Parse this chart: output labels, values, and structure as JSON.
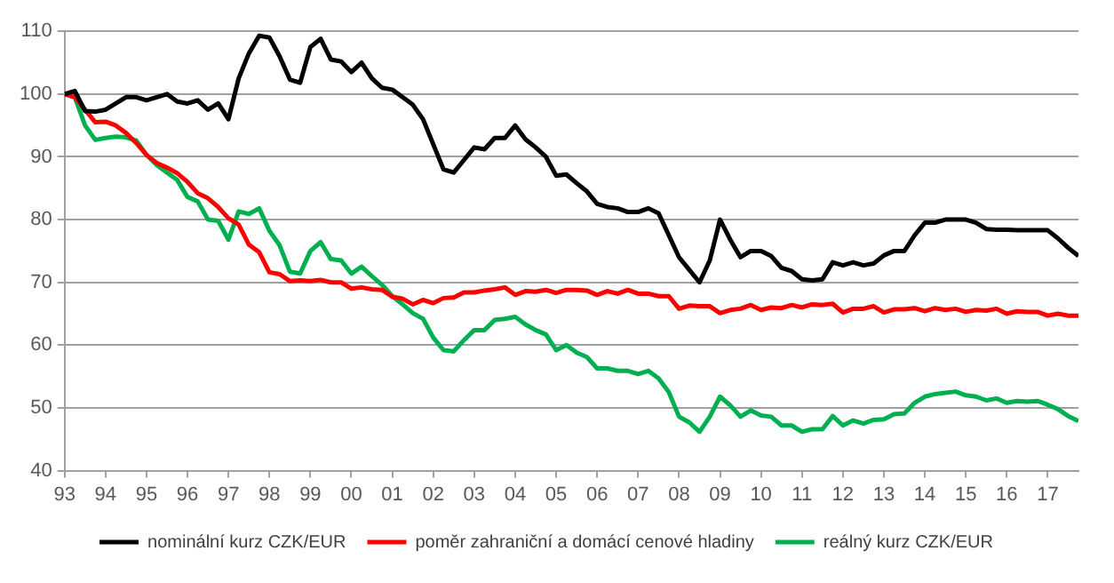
{
  "chart_data": {
    "type": "line",
    "x": [
      "1993-01",
      "1993-04",
      "1993-07",
      "1993-10",
      "1994-01",
      "1994-04",
      "1994-07",
      "1994-10",
      "1995-01",
      "1995-04",
      "1995-07",
      "1995-10",
      "1996-01",
      "1996-04",
      "1996-07",
      "1996-10",
      "1997-01",
      "1997-04",
      "1997-07",
      "1997-10",
      "1998-01",
      "1998-04",
      "1998-07",
      "1998-10",
      "1999-01",
      "1999-04",
      "1999-07",
      "1999-10",
      "2000-01",
      "2000-04",
      "2000-07",
      "2000-10",
      "2001-01",
      "2001-04",
      "2001-07",
      "2001-10",
      "2002-01",
      "2002-04",
      "2002-07",
      "2002-10",
      "2003-01",
      "2003-04",
      "2003-07",
      "2003-10",
      "2004-01",
      "2004-04",
      "2004-07",
      "2004-10",
      "2005-01",
      "2005-04",
      "2005-07",
      "2005-10",
      "2006-01",
      "2006-04",
      "2006-07",
      "2006-10",
      "2007-01",
      "2007-04",
      "2007-07",
      "2007-10",
      "2008-01",
      "2008-04",
      "2008-07",
      "2008-10",
      "2009-01",
      "2009-04",
      "2009-07",
      "2009-10",
      "2010-01",
      "2010-04",
      "2010-07",
      "2010-10",
      "2011-01",
      "2011-04",
      "2011-07",
      "2011-10",
      "2012-01",
      "2012-04",
      "2012-07",
      "2012-10",
      "2013-01",
      "2013-04",
      "2013-07",
      "2013-10",
      "2014-01",
      "2014-04",
      "2014-07",
      "2014-10",
      "2015-01",
      "2015-04",
      "2015-07",
      "2015-10",
      "2016-01",
      "2016-04",
      "2016-07",
      "2016-10",
      "2017-01",
      "2017-04",
      "2017-07",
      "2017-10"
    ],
    "series": [
      {
        "name": "nominální kurz CZK/EUR",
        "color": "#000000",
        "values": [
          100,
          100.5,
          97.3,
          97.2,
          97.5,
          98.5,
          99.5,
          99.5,
          99,
          99.5,
          100,
          98.8,
          98.5,
          99,
          97.5,
          98.5,
          96,
          102.5,
          106.5,
          109.3,
          109,
          106,
          102.3,
          101.8,
          107.5,
          108.8,
          105.5,
          105.2,
          103.5,
          105,
          102.5,
          101,
          100.7,
          99.5,
          98.3,
          96,
          92,
          88,
          87.5,
          89.5,
          91.5,
          91.2,
          93,
          93,
          95,
          92.8,
          91.5,
          90,
          87,
          87.2,
          85.8,
          84.5,
          82.5,
          82,
          81.8,
          81.2,
          81.2,
          81.8,
          81,
          77.5,
          74,
          72,
          70,
          73.5,
          80,
          76.8,
          74,
          75,
          75,
          74.2,
          72.3,
          71.8,
          70.5,
          70.3,
          70.5,
          73.2,
          72.7,
          73.2,
          72.7,
          73,
          74.3,
          75,
          75,
          77.5,
          79.5,
          79.5,
          80,
          80,
          80,
          79.5,
          78.5,
          78.4,
          78.4,
          78.3,
          78.3,
          78.3,
          78.3,
          77,
          75.5,
          74.2
        ]
      },
      {
        "name": "poměr zahraniční a domácí cenové hladiny",
        "color": "#ff0000",
        "values": [
          100,
          99.5,
          97.5,
          95.5,
          95.6,
          95,
          93.8,
          92.2,
          90.3,
          89,
          88.3,
          87.4,
          86,
          84.2,
          83.4,
          82,
          80.2,
          79.2,
          76,
          74.8,
          71.6,
          71.3,
          70.2,
          70.3,
          70.2,
          70.4,
          70,
          70,
          69,
          69.2,
          68.9,
          68.8,
          67.7,
          67.4,
          66.5,
          67.2,
          66.7,
          67.5,
          67.6,
          68.4,
          68.4,
          68.7,
          68.9,
          69.2,
          68,
          68.6,
          68.5,
          68.8,
          68.3,
          68.8,
          68.8,
          68.7,
          68,
          68.6,
          68.2,
          68.8,
          68.2,
          68.2,
          67.8,
          67.8,
          65.8,
          66.3,
          66.2,
          66.2,
          65.1,
          65.6,
          65.8,
          66.4,
          65.6,
          66,
          65.9,
          66.4,
          66,
          66.5,
          66.4,
          66.6,
          65.2,
          65.8,
          65.8,
          66.2,
          65.2,
          65.7,
          65.7,
          65.9,
          65.4,
          65.9,
          65.6,
          65.8,
          65.3,
          65.6,
          65.5,
          65.8,
          65,
          65.4,
          65.3,
          65.3,
          64.7,
          65,
          64.7,
          64.7
        ]
      },
      {
        "name": "reálný kurz CZK/EUR",
        "color": "#00b050",
        "values": [
          100,
          99.5,
          95,
          92.7,
          93,
          93.2,
          93.1,
          92.6,
          90.3,
          88.7,
          87.5,
          86.3,
          83.6,
          82.9,
          80,
          79.8,
          76.8,
          81.3,
          80.9,
          81.8,
          78.2,
          75.9,
          71.7,
          71.4,
          75,
          76.4,
          73.7,
          73.5,
          71.4,
          72.5,
          71,
          69.6,
          67.8,
          66.5,
          65.1,
          64.2,
          61.2,
          59.2,
          59,
          60.8,
          62.4,
          62.4,
          64,
          64.2,
          64.5,
          63.3,
          62.4,
          61.7,
          59.2,
          60,
          58.8,
          58.1,
          56.3,
          56.3,
          55.9,
          55.9,
          55.4,
          55.9,
          54.7,
          52.5,
          48.6,
          47.7,
          46.2,
          48.6,
          51.8,
          50.4,
          48.6,
          49.6,
          48.8,
          48.6,
          47.2,
          47.2,
          46.2,
          46.6,
          46.6,
          48.7,
          47.2,
          48,
          47.5,
          48.1,
          48.2,
          49,
          49.1,
          50.8,
          51.8,
          52.2,
          52.4,
          52.6,
          52,
          51.8,
          51.2,
          51.5,
          50.8,
          51.1,
          51,
          51.1,
          50.5,
          49.8,
          48.7,
          47.9
        ]
      }
    ],
    "xlim": [
      "1993-01",
      "2017-10"
    ],
    "xticks": [
      {
        "value": "1993",
        "label": "93"
      },
      {
        "value": "1994",
        "label": "94"
      },
      {
        "value": "1995",
        "label": "95"
      },
      {
        "value": "1996",
        "label": "96"
      },
      {
        "value": "1997",
        "label": "97"
      },
      {
        "value": "1998",
        "label": "98"
      },
      {
        "value": "1999",
        "label": "99"
      },
      {
        "value": "2000",
        "label": "00"
      },
      {
        "value": "2001",
        "label": "01"
      },
      {
        "value": "2002",
        "label": "02"
      },
      {
        "value": "2003",
        "label": "03"
      },
      {
        "value": "2004",
        "label": "04"
      },
      {
        "value": "2005",
        "label": "05"
      },
      {
        "value": "2006",
        "label": "06"
      },
      {
        "value": "2007",
        "label": "07"
      },
      {
        "value": "2008",
        "label": "08"
      },
      {
        "value": "2009",
        "label": "09"
      },
      {
        "value": "2010",
        "label": "10"
      },
      {
        "value": "2011",
        "label": "11"
      },
      {
        "value": "2012",
        "label": "12"
      },
      {
        "value": "2013",
        "label": "13"
      },
      {
        "value": "2014",
        "label": "14"
      },
      {
        "value": "2015",
        "label": "15"
      },
      {
        "value": "2016",
        "label": "16"
      },
      {
        "value": "2017",
        "label": "17"
      }
    ],
    "ylim": [
      40,
      110
    ],
    "yticks": [
      40,
      50,
      60,
      70,
      80,
      90,
      100,
      110
    ],
    "grid": "y",
    "legend": "bottom"
  }
}
